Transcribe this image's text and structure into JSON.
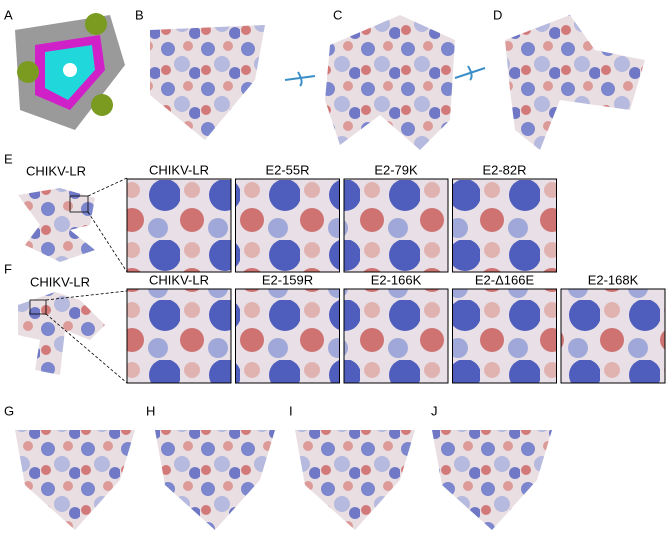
{
  "panels": [
    "A",
    "B",
    "C",
    "D",
    "E",
    "F",
    "G",
    "H",
    "I",
    "J"
  ],
  "row_e": {
    "overview_label": "CHIKV-LR",
    "zoom_labels": [
      "CHIKV-LR",
      "E2-55R",
      "E2-79K",
      "E2-82R"
    ]
  },
  "row_f": {
    "overview_label": "CHIKV-LR",
    "zoom_labels": [
      "CHIKV-LR",
      "E2-159R",
      "E2-166K",
      "E2-Δ166E",
      "E2-168K"
    ]
  }
}
